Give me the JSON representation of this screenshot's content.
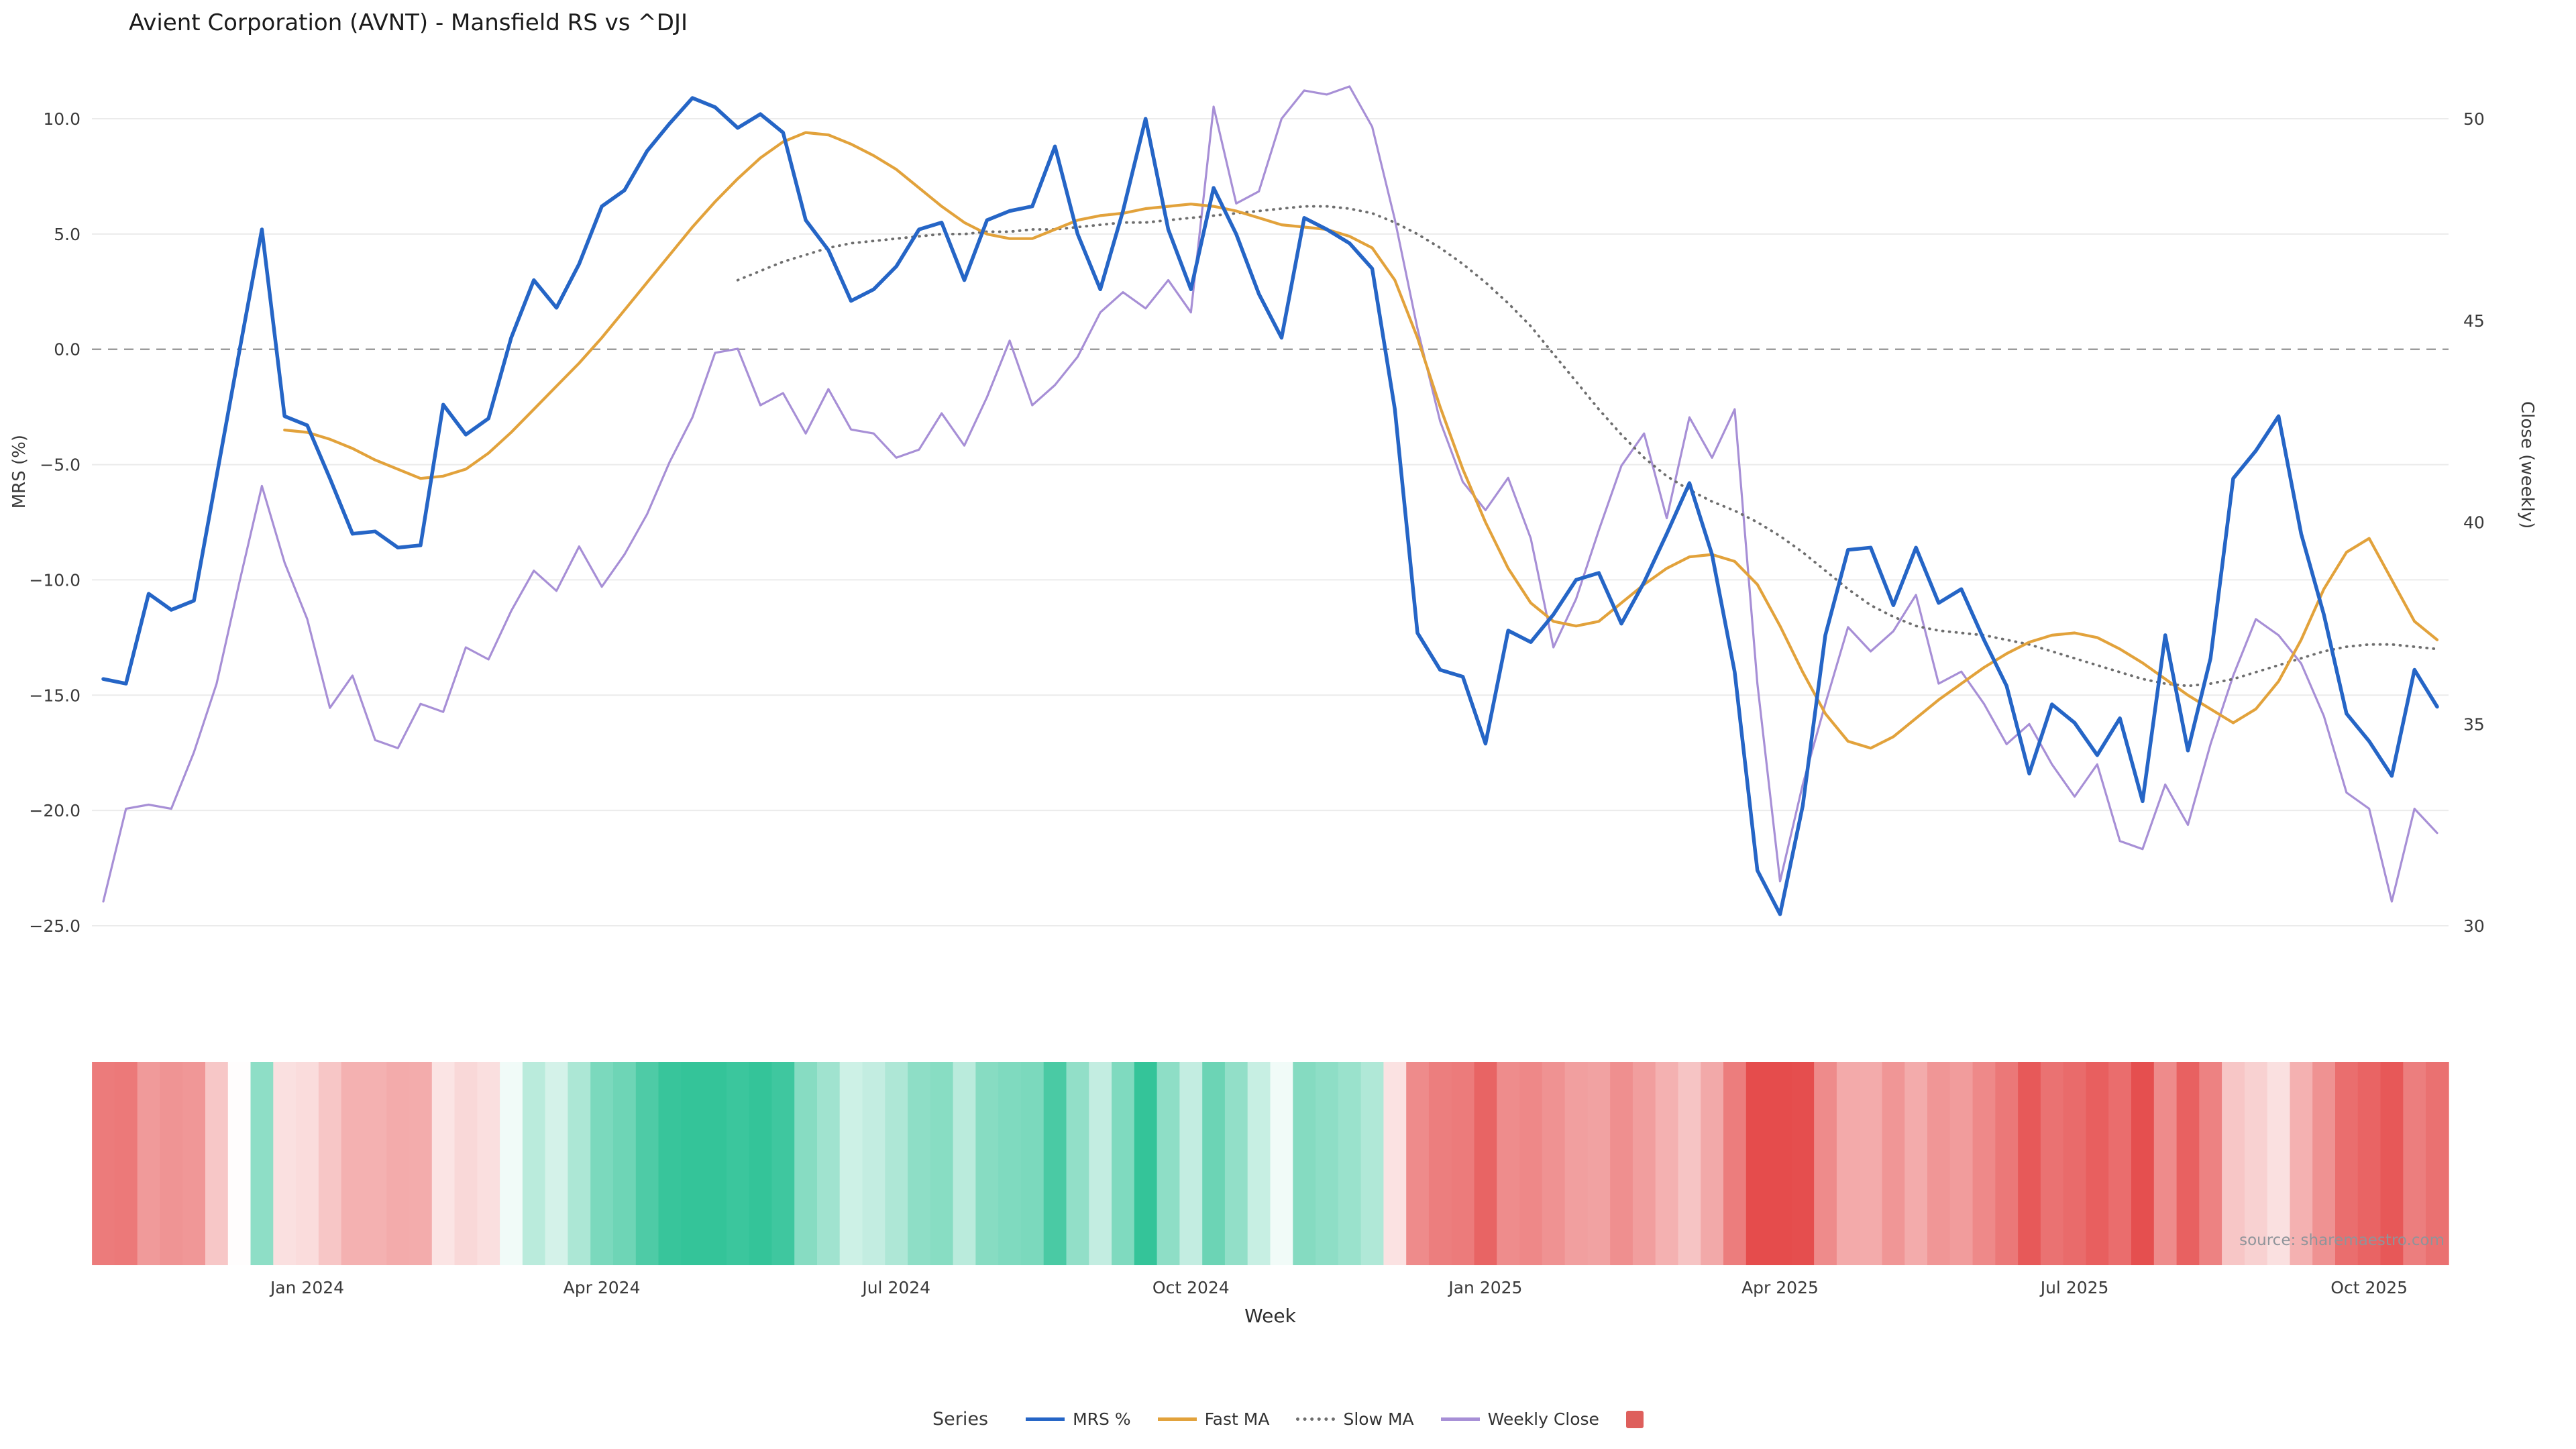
{
  "title": "Avient Corporation (AVNT) - Mansfield RS vs ^DJI",
  "source": "source: sharemaestro.com",
  "axes": {
    "x_title": "Week",
    "y_left_title": "MRS (%)",
    "y_right_title": "Close (weekly)",
    "y_left_ticks": [
      {
        "label": "10.0",
        "value": 10
      },
      {
        "label": "5.0",
        "value": 5
      },
      {
        "label": "0.0",
        "value": 0
      },
      {
        "label": "−5.0",
        "value": -5
      },
      {
        "label": "−10.0",
        "value": -10
      },
      {
        "label": "−15.0",
        "value": -15
      },
      {
        "label": "−20.0",
        "value": -20
      },
      {
        "label": "−25.0",
        "value": -25
      }
    ],
    "y_right_ticks": [
      {
        "label": "50",
        "value": 50
      },
      {
        "label": "45",
        "value": 45
      },
      {
        "label": "40",
        "value": 40
      },
      {
        "label": "35",
        "value": 35
      },
      {
        "label": "30",
        "value": 30
      }
    ],
    "x_ticks": [
      {
        "label": "Jan 2024",
        "week": 9
      },
      {
        "label": "Apr 2024",
        "week": 22
      },
      {
        "label": "Jul 2024",
        "week": 35
      },
      {
        "label": "Oct 2024",
        "week": 48
      },
      {
        "label": "Jan 2025",
        "week": 61
      },
      {
        "label": "Apr 2025",
        "week": 74
      },
      {
        "label": "Jul 2025",
        "week": 87
      },
      {
        "label": "Oct 2025",
        "week": 100
      }
    ]
  },
  "legend": {
    "title": "Series",
    "items": [
      {
        "label": "MRS %",
        "color": "#2565c6",
        "type": "line"
      },
      {
        "label": "Fast MA",
        "color": "#e2a23b",
        "type": "line"
      },
      {
        "label": "Slow MA",
        "color": "#6e6e6e",
        "type": "dotted"
      },
      {
        "label": "Weekly Close",
        "color": "#a78fd6",
        "type": "line"
      },
      {
        "label": "",
        "color": "#de5f5c",
        "type": "square"
      }
    ]
  },
  "chart_data": {
    "type": "line",
    "title": "Avient Corporation (AVNT) - Mansfield RS vs ^DJI",
    "x_unit": "week_index",
    "n_weeks": 104,
    "y_left_range": [
      -25,
      10
    ],
    "y_right_range": [
      30,
      50
    ],
    "grid": true,
    "zero_reference_line": true,
    "legend_position": "bottom-center",
    "series": [
      {
        "name": "MRS %",
        "axis": "left",
        "color": "#2565c6",
        "style": "solid",
        "values": [
          -14.3,
          -14.5,
          -10.6,
          -11.3,
          -10.9,
          -5.5,
          -0.1,
          5.2,
          -2.9,
          -3.3,
          -5.6,
          -8.0,
          -7.9,
          -8.6,
          -8.5,
          -2.4,
          -3.7,
          -3.0,
          0.5,
          3.0,
          1.8,
          3.7,
          6.2,
          6.9,
          8.6,
          9.8,
          10.9,
          10.5,
          9.6,
          10.2,
          9.4,
          5.6,
          4.3,
          2.1,
          2.6,
          3.6,
          5.2,
          5.5,
          3.0,
          5.6,
          6.0,
          6.2,
          8.8,
          5.0,
          2.6,
          6.0,
          10.0,
          5.2,
          2.6,
          7.0,
          5.0,
          2.4,
          0.5,
          5.7,
          5.2,
          4.6,
          3.5,
          -2.6,
          -12.3,
          -13.9,
          -14.2,
          -17.1,
          -12.2,
          -12.7,
          -11.5,
          -10.0,
          -9.7,
          -11.9,
          -10.1,
          -8.0,
          -5.8,
          -8.9,
          -14.0,
          -22.6,
          -24.5,
          -19.8,
          -12.4,
          -8.7,
          -8.6,
          -11.1,
          -8.6,
          -11.0,
          -10.4,
          -12.6,
          -14.6,
          -18.4,
          -15.4,
          -16.2,
          -17.6,
          -16.0,
          -19.6,
          -12.4,
          -17.4,
          -13.4,
          -5.6,
          -4.4,
          -2.9,
          -8.0,
          -11.5,
          -15.8,
          -17.0,
          -18.5,
          -13.9,
          -15.5
        ]
      },
      {
        "name": "Fast MA",
        "axis": "left",
        "color": "#e2a23b",
        "style": "solid",
        "values": [
          null,
          null,
          null,
          null,
          null,
          null,
          null,
          null,
          -3.5,
          -3.6,
          -3.9,
          -4.3,
          -4.8,
          -5.2,
          -5.6,
          -5.5,
          -5.2,
          -4.5,
          -3.6,
          -2.6,
          -1.6,
          -0.6,
          0.5,
          1.7,
          2.9,
          4.1,
          5.3,
          6.4,
          7.4,
          8.3,
          9.0,
          9.4,
          9.3,
          8.9,
          8.4,
          7.8,
          7.0,
          6.2,
          5.5,
          5.0,
          4.8,
          4.8,
          5.2,
          5.6,
          5.8,
          5.9,
          6.1,
          6.2,
          6.3,
          6.2,
          6.0,
          5.7,
          5.4,
          5.3,
          5.2,
          4.9,
          4.4,
          3.0,
          0.5,
          -2.5,
          -5.2,
          -7.5,
          -9.5,
          -11.0,
          -11.8,
          -12.0,
          -11.8,
          -11.0,
          -10.2,
          -9.5,
          -9.0,
          -8.9,
          -9.2,
          -10.2,
          -12.0,
          -14.0,
          -15.8,
          -17.0,
          -17.3,
          -16.8,
          -16.0,
          -15.2,
          -14.5,
          -13.8,
          -13.2,
          -12.7,
          -12.4,
          -12.3,
          -12.5,
          -13.0,
          -13.6,
          -14.3,
          -15.0,
          -15.6,
          -16.2,
          -15.6,
          -14.4,
          -12.6,
          -10.4,
          -8.8,
          -8.2,
          -10.0,
          -11.8,
          -12.6
        ]
      },
      {
        "name": "Slow MA",
        "axis": "left",
        "color": "#6e6e6e",
        "style": "dotted",
        "values": [
          null,
          null,
          null,
          null,
          null,
          null,
          null,
          null,
          null,
          null,
          null,
          null,
          null,
          null,
          null,
          null,
          null,
          null,
          null,
          null,
          null,
          null,
          null,
          null,
          null,
          null,
          null,
          null,
          3.0,
          3.4,
          3.8,
          4.1,
          4.4,
          4.6,
          4.7,
          4.8,
          4.9,
          5.0,
          5.0,
          5.1,
          5.1,
          5.2,
          5.2,
          5.3,
          5.4,
          5.5,
          5.5,
          5.6,
          5.7,
          5.8,
          5.9,
          6.0,
          6.1,
          6.2,
          6.2,
          6.1,
          5.9,
          5.5,
          5.0,
          4.4,
          3.7,
          2.9,
          2.0,
          1.0,
          -0.2,
          -1.4,
          -2.6,
          -3.7,
          -4.7,
          -5.5,
          -6.1,
          -6.6,
          -7.0,
          -7.5,
          -8.1,
          -8.8,
          -9.6,
          -10.4,
          -11.1,
          -11.6,
          -12.0,
          -12.2,
          -12.3,
          -12.4,
          -12.6,
          -12.8,
          -13.1,
          -13.4,
          -13.7,
          -14.0,
          -14.3,
          -14.5,
          -14.6,
          -14.5,
          -14.3,
          -14.0,
          -13.7,
          -13.4,
          -13.1,
          -12.9,
          -12.8,
          -12.8,
          -12.9,
          -13.0
        ]
      },
      {
        "name": "Weekly Close",
        "axis": "right",
        "color": "#a78fd6",
        "style": "solid",
        "values": [
          30.6,
          32.9,
          33.0,
          32.9,
          34.3,
          36.0,
          38.5,
          40.9,
          39.0,
          37.6,
          35.4,
          36.2,
          34.6,
          34.4,
          35.5,
          35.3,
          36.9,
          36.6,
          37.8,
          38.8,
          38.3,
          39.4,
          38.4,
          39.2,
          40.2,
          41.5,
          42.6,
          44.2,
          44.3,
          42.9,
          43.2,
          42.2,
          43.3,
          42.3,
          42.2,
          41.6,
          41.8,
          42.7,
          41.9,
          43.1,
          44.5,
          42.9,
          43.4,
          44.1,
          45.2,
          45.7,
          45.3,
          46.0,
          45.2,
          50.3,
          47.9,
          48.2,
          50.0,
          50.7,
          50.6,
          50.8,
          49.8,
          47.5,
          44.8,
          42.5,
          41.0,
          40.3,
          41.1,
          39.6,
          36.9,
          38.1,
          39.8,
          41.4,
          42.2,
          40.1,
          42.6,
          41.6,
          42.8,
          36.0,
          31.1,
          33.5,
          35.5,
          37.4,
          36.8,
          37.3,
          38.2,
          36.0,
          36.3,
          35.5,
          34.5,
          35.0,
          34.0,
          33.2,
          34.0,
          32.1,
          31.9,
          33.5,
          32.5,
          34.5,
          36.2,
          37.6,
          37.2,
          36.5,
          35.2,
          33.3,
          32.9,
          30.6,
          32.9,
          32.3
        ]
      }
    ],
    "heatmap": {
      "derived_from": "MRS %",
      "positive_color": "#34c499",
      "negative_color": "#e54c4c",
      "neutral_color": "#ffffff"
    }
  }
}
